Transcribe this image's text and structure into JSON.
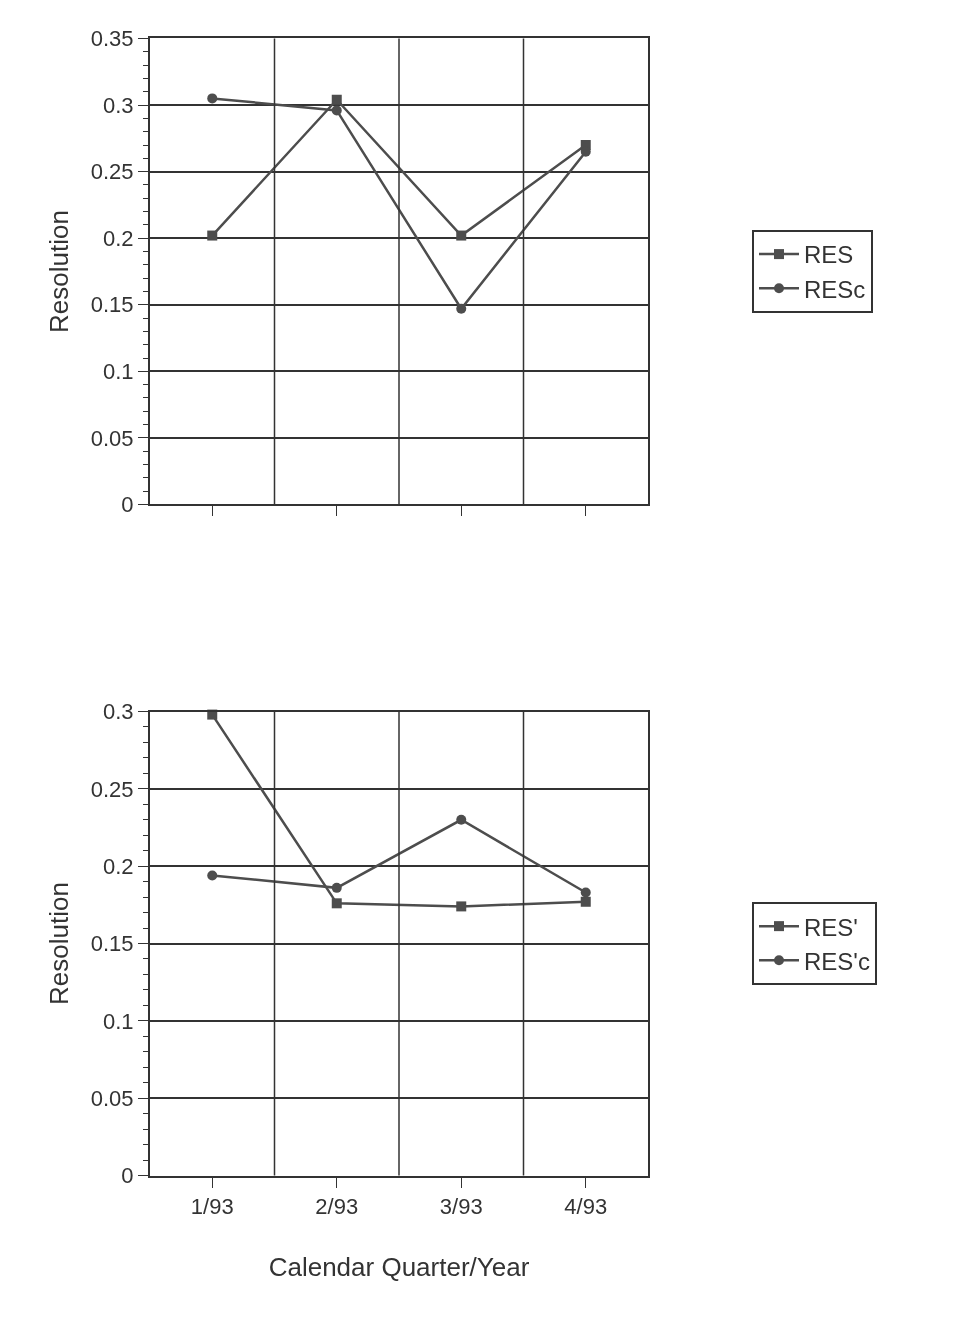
{
  "chart_data": [
    {
      "type": "line",
      "ylabel": "Resolution",
      "categories": [
        null,
        null,
        null,
        null
      ],
      "ylim": [
        0,
        0.35
      ],
      "yticks": [
        0,
        0.05,
        0.1,
        0.15,
        0.2,
        0.25,
        0.3,
        0.35
      ],
      "grid": true,
      "legend": "right",
      "series": [
        {
          "name": "RES",
          "color": "#4d4d4d",
          "marker": "square",
          "values": [
            0.202,
            0.304,
            0.202,
            0.27
          ]
        },
        {
          "name": "RESc",
          "color": "#4d4d4d",
          "marker": "circle",
          "values": [
            0.305,
            0.296,
            0.147,
            0.265
          ]
        }
      ]
    },
    {
      "type": "line",
      "ylabel": "Resolution",
      "xlabel": "Calendar Quarter/Year",
      "categories": [
        "1/93",
        "2/93",
        "3/93",
        "4/93"
      ],
      "ylim": [
        0,
        0.3
      ],
      "yticks": [
        0,
        0.05,
        0.1,
        0.15,
        0.2,
        0.25,
        0.3
      ],
      "grid": true,
      "legend": "right",
      "series": [
        {
          "name": "RES'",
          "color": "#4d4d4d",
          "marker": "square",
          "values": [
            0.298,
            0.176,
            0.174,
            0.177
          ]
        },
        {
          "name": "RES'c",
          "color": "#4d4d4d",
          "marker": "circle",
          "values": [
            0.194,
            0.186,
            0.23,
            0.183
          ]
        }
      ]
    }
  ]
}
